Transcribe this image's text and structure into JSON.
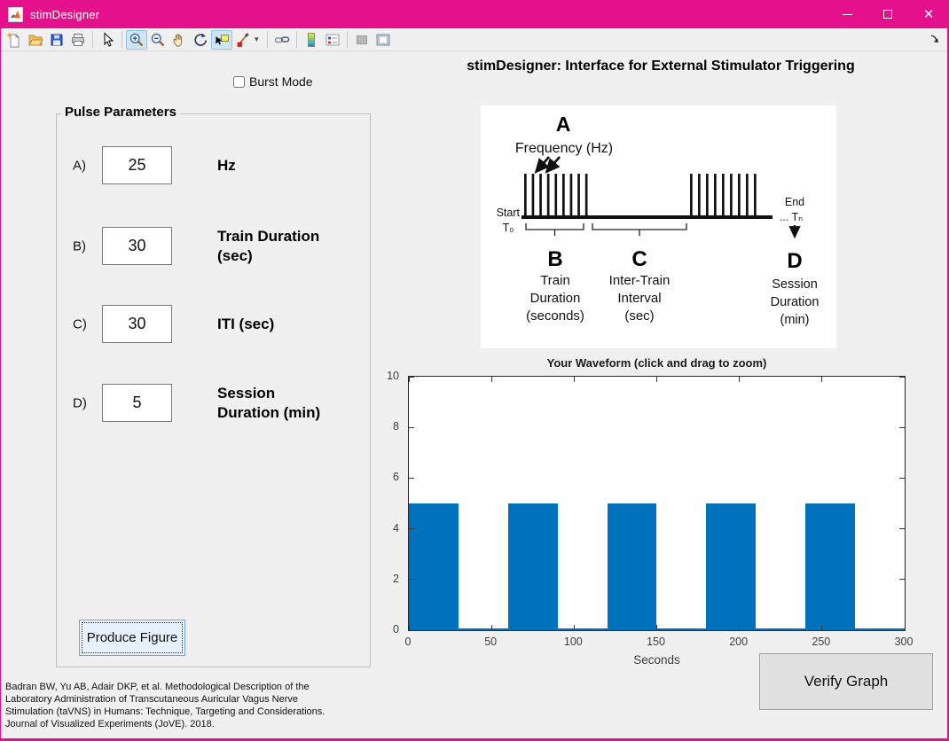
{
  "window": {
    "title": "stimDesigner",
    "close_glyph": "×"
  },
  "toolbar": {
    "brush_dropdown_glyph": "▾",
    "icon_names": [
      "new-figure-icon",
      "open-file-icon",
      "save-figure-icon",
      "print-figure-icon",
      "edit-cursor-icon",
      "zoom-in-icon",
      "zoom-out-icon",
      "pan-hand-icon",
      "rotate-3d-icon",
      "data-cursor-icon",
      "brush-data-icon",
      "link-plot-icon",
      "insert-colorbar-icon",
      "insert-legend-icon",
      "hide-plot-tools-icon",
      "show-plot-tools-icon",
      "dock-figure-icon"
    ],
    "selected_icons": [
      "zoom-in-icon",
      "data-cursor-icon"
    ]
  },
  "burst_mode": {
    "label": "Burst Mode",
    "checked": false
  },
  "pulse_parameters": {
    "title": "Pulse Parameters",
    "fields": [
      {
        "prefix": "A)",
        "value": "25",
        "label_lines": [
          "Hz",
          ""
        ]
      },
      {
        "prefix": "B)",
        "value": "30",
        "label_lines": [
          "Train Duration",
          "(sec)"
        ]
      },
      {
        "prefix": "C)",
        "value": "30",
        "label_lines": [
          "ITI (sec)",
          ""
        ]
      },
      {
        "prefix": "D)",
        "value": "5",
        "label_lines": [
          "Session",
          "Duration (min)"
        ]
      }
    ],
    "produce_button_label": "Produce Figure"
  },
  "header": {
    "title": "stimDesigner: Interface for External Stimulator Triggering"
  },
  "diagram": {
    "a_label": "A",
    "a_caption": "Frequency (Hz)",
    "start_label": "Start",
    "start_sub": "T₀",
    "end_label": "End",
    "end_sub": "... Tₙ",
    "b_label": "B",
    "b_caption_lines": [
      "Train",
      "Duration",
      "(seconds)"
    ],
    "c_label": "C",
    "c_caption_lines": [
      "Inter-Train",
      "Interval",
      "(sec)"
    ],
    "d_label": "D",
    "d_caption_lines": [
      "Session",
      "Duration",
      "(min)"
    ]
  },
  "chart_data": {
    "type": "area",
    "title": "Your Waveform (click and drag to zoom)",
    "xlabel": "Seconds",
    "ylabel": "",
    "xlim": [
      0,
      300
    ],
    "ylim": [
      0,
      10
    ],
    "xticks": [
      0,
      50,
      100,
      150,
      200,
      250,
      300
    ],
    "yticks": [
      0,
      2,
      4,
      6,
      8,
      10
    ],
    "grid": false,
    "series_color": "#0072BD",
    "amplitude": 5,
    "trains": [
      {
        "start": 0,
        "end": 30
      },
      {
        "start": 60,
        "end": 90
      },
      {
        "start": 120,
        "end": 150
      },
      {
        "start": 180,
        "end": 210
      },
      {
        "start": 240,
        "end": 270
      }
    ]
  },
  "verify_button_label": "Verify Graph",
  "citation_lines": [
    "Badran BW, Yu AB, Adair DKP, et al. Methodological Description of the",
    "Laboratory Administration of Transcutaneous Auricular Vagus Nerve",
    "Stimulation (taVNS) in Humans: Technique, Targeting and Considerations.",
    "Journal of Visualized Experiments (JoVE). 2018."
  ]
}
